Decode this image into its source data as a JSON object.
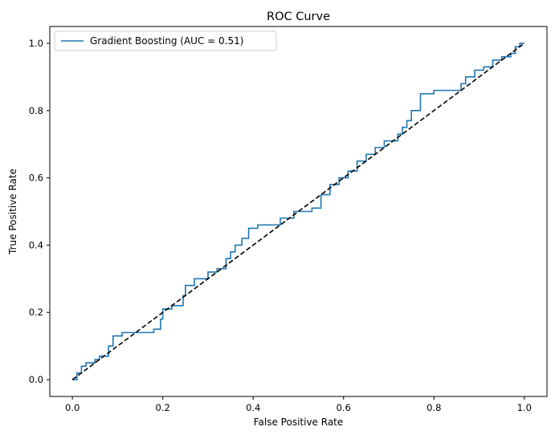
{
  "chart_data": {
    "type": "line",
    "title": "ROC Curve",
    "xlabel": "False Positive Rate",
    "ylabel": "True Positive Rate",
    "xlim": [
      -0.05,
      1.05
    ],
    "ylim": [
      -0.05,
      1.05
    ],
    "xticks": [
      0.0,
      0.2,
      0.4,
      0.6,
      0.8,
      1.0
    ],
    "xtick_labels": [
      "0.0",
      "0.2",
      "0.4",
      "0.6",
      "0.8",
      "1.0"
    ],
    "yticks": [
      0.0,
      0.2,
      0.4,
      0.6,
      0.8,
      1.0
    ],
    "ytick_labels": [
      "0.0",
      "0.2",
      "0.4",
      "0.6",
      "0.8",
      "1.0"
    ],
    "grid": false,
    "legend": {
      "placement": "top-left"
    },
    "series": [
      {
        "name": "Gradient Boosting (AUC = 0.51)",
        "color": "#1f77b4",
        "linestyle": "solid",
        "step": true,
        "x": [
          0.0,
          0.01,
          0.01,
          0.02,
          0.02,
          0.03,
          0.03,
          0.05,
          0.05,
          0.06,
          0.06,
          0.08,
          0.08,
          0.09,
          0.09,
          0.11,
          0.11,
          0.18,
          0.18,
          0.195,
          0.195,
          0.2,
          0.2,
          0.22,
          0.22,
          0.245,
          0.245,
          0.25,
          0.25,
          0.27,
          0.27,
          0.3,
          0.3,
          0.32,
          0.32,
          0.34,
          0.34,
          0.35,
          0.35,
          0.36,
          0.36,
          0.375,
          0.375,
          0.39,
          0.39,
          0.41,
          0.41,
          0.46,
          0.46,
          0.49,
          0.49,
          0.53,
          0.53,
          0.55,
          0.55,
          0.57,
          0.57,
          0.59,
          0.59,
          0.61,
          0.61,
          0.63,
          0.63,
          0.65,
          0.65,
          0.67,
          0.67,
          0.69,
          0.69,
          0.72,
          0.72,
          0.73,
          0.73,
          0.74,
          0.74,
          0.75,
          0.75,
          0.77,
          0.77,
          0.8,
          0.8,
          0.86,
          0.86,
          0.87,
          0.87,
          0.89,
          0.89,
          0.91,
          0.91,
          0.93,
          0.93,
          0.95,
          0.95,
          0.97,
          0.97,
          0.98,
          0.98,
          0.99,
          0.99,
          1.0
        ],
        "y": [
          0.0,
          0.0,
          0.02,
          0.02,
          0.04,
          0.04,
          0.05,
          0.05,
          0.06,
          0.06,
          0.07,
          0.07,
          0.1,
          0.1,
          0.13,
          0.13,
          0.14,
          0.14,
          0.15,
          0.15,
          0.18,
          0.18,
          0.21,
          0.21,
          0.22,
          0.22,
          0.25,
          0.25,
          0.28,
          0.28,
          0.3,
          0.3,
          0.32,
          0.32,
          0.33,
          0.33,
          0.36,
          0.36,
          0.38,
          0.38,
          0.4,
          0.4,
          0.42,
          0.42,
          0.45,
          0.45,
          0.46,
          0.46,
          0.48,
          0.48,
          0.5,
          0.5,
          0.51,
          0.51,
          0.55,
          0.55,
          0.58,
          0.58,
          0.6,
          0.6,
          0.62,
          0.62,
          0.65,
          0.65,
          0.67,
          0.67,
          0.69,
          0.69,
          0.71,
          0.71,
          0.73,
          0.73,
          0.75,
          0.75,
          0.77,
          0.77,
          0.8,
          0.8,
          0.85,
          0.85,
          0.86,
          0.86,
          0.88,
          0.88,
          0.9,
          0.9,
          0.92,
          0.92,
          0.93,
          0.93,
          0.95,
          0.95,
          0.96,
          0.96,
          0.97,
          0.97,
          0.99,
          0.99,
          1.0,
          1.0
        ]
      },
      {
        "name": "",
        "color": "#000000",
        "linestyle": "dashed",
        "step": false,
        "x": [
          0.0,
          1.0
        ],
        "y": [
          0.0,
          1.0
        ]
      }
    ]
  }
}
